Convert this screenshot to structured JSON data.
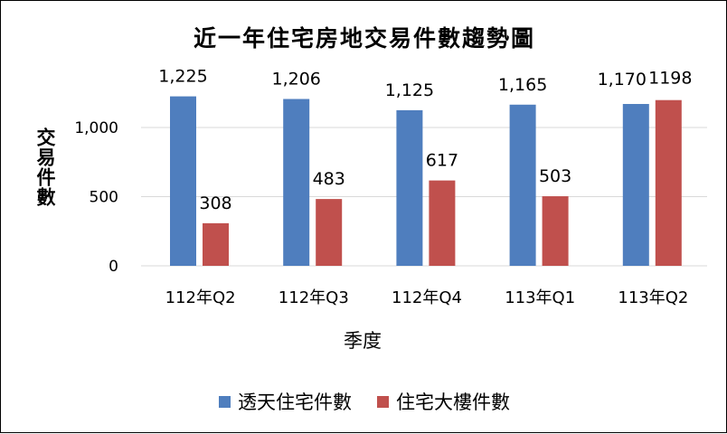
{
  "chart_data": {
    "type": "bar",
    "title": "近一年住宅房地交易件數趨勢圖",
    "xlabel": "季度",
    "ylabel": "交易件數",
    "categories": [
      "112年Q2",
      "112年Q3",
      "112年Q4",
      "113年Q1",
      "113年Q2"
    ],
    "series": [
      {
        "name": "透天住宅件數",
        "color": "#4F7EBE",
        "values": [
          1225,
          1206,
          1125,
          1165,
          1170
        ],
        "labels": [
          "1,225",
          "1,206",
          "1,125",
          "1,165",
          "1,170"
        ]
      },
      {
        "name": "住宅大樓件數",
        "color": "#C0504D",
        "values": [
          308,
          483,
          617,
          503,
          1198
        ],
        "labels": [
          "308",
          "483",
          "617",
          "503",
          "1198"
        ]
      }
    ],
    "yticks": [
      0,
      500,
      1000
    ],
    "ytick_labels": [
      "0",
      "500",
      "1,000"
    ],
    "ylim": [
      0,
      1300
    ],
    "grid": true,
    "legend_position": "bottom"
  }
}
